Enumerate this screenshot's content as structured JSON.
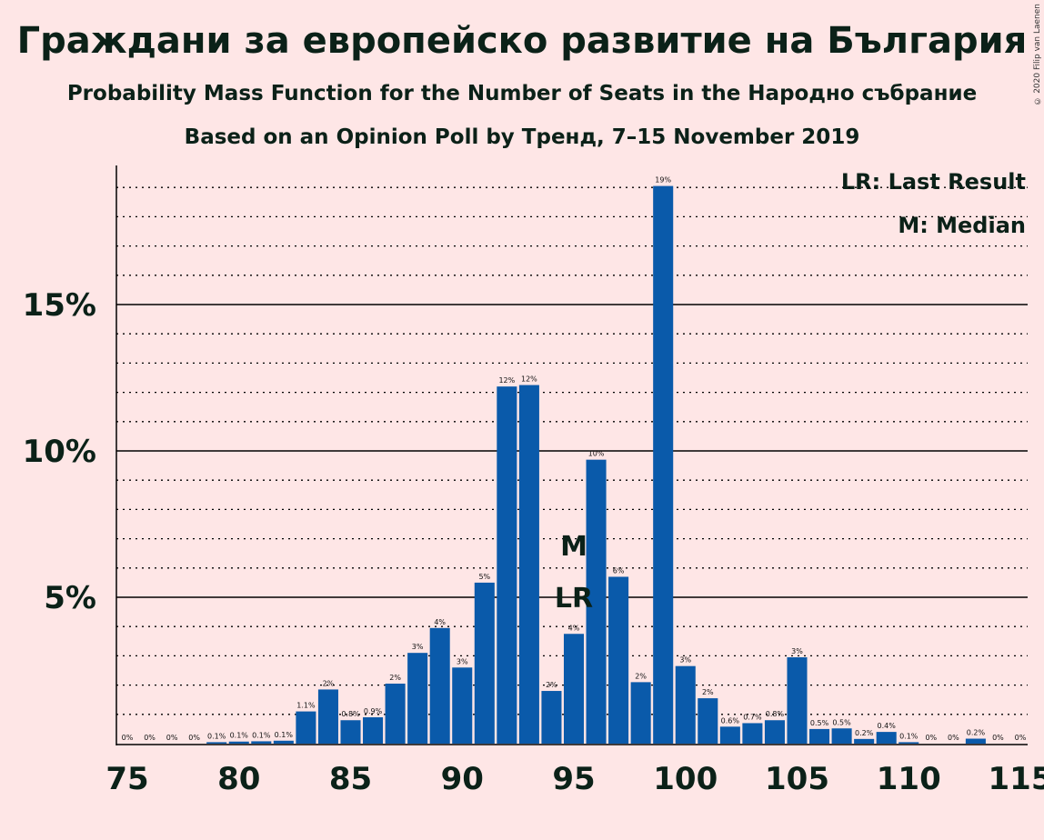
{
  "title": "Граждани за европейско развитие на България",
  "subtitle": "Probability Mass Function for the Number of Seats in the Народно събрание",
  "subtitle2": "Based on an Opinion Poll by Тренд, 7–15 November 2019",
  "copyright": "© 2020 Filip van Laenen",
  "legend": {
    "lr": "LR: Last Result",
    "m": "M: Median"
  },
  "colors": {
    "bar": "#0A5AAA",
    "background": "#FEE6E6",
    "text": "#0b2118"
  },
  "chart_data": {
    "type": "bar",
    "x": [
      75,
      76,
      77,
      78,
      79,
      80,
      81,
      82,
      83,
      84,
      85,
      86,
      87,
      88,
      89,
      90,
      91,
      92,
      93,
      94,
      95,
      96,
      97,
      98,
      99,
      100,
      101,
      102,
      103,
      104,
      105,
      106,
      107,
      108,
      109,
      110,
      111,
      112,
      113,
      114,
      115
    ],
    "values": [
      0,
      0,
      0,
      0,
      0.05,
      0.07,
      0.08,
      0.1,
      1.1,
      1.85,
      0.8,
      0.9,
      2.05,
      3.1,
      3.95,
      2.6,
      5.5,
      12.2,
      12.25,
      1.8,
      3.75,
      9.7,
      5.7,
      2.1,
      19.05,
      2.65,
      1.55,
      0.58,
      0.7,
      0.8,
      2.95,
      0.5,
      0.52,
      0.16,
      0.4,
      0.05,
      0,
      0,
      0.17,
      0,
      0
    ],
    "labels": [
      "0%",
      "0%",
      "0%",
      "0%",
      "0.1%",
      "0.1%",
      "0.1%",
      "0.1%",
      "1.1%",
      "2%",
      "0.8%",
      "0.9%",
      "2%",
      "3%",
      "4%",
      "3%",
      "5%",
      "12%",
      "12%",
      "2%",
      "4%",
      "10%",
      "6%",
      "2%",
      "19%",
      "3%",
      "2%",
      "0.6%",
      "0.7%",
      "0.8%",
      "3%",
      "0.5%",
      "0.5%",
      "0.2%",
      "0.4%",
      "0.1%",
      "0%",
      "0%",
      "0.2%",
      "0%",
      "0%"
    ],
    "xticks": [
      75,
      80,
      85,
      90,
      95,
      100,
      105,
      110,
      115
    ],
    "yticks": [
      5,
      10,
      15
    ],
    "ytick_labels": [
      "5%",
      "10%",
      "15%"
    ],
    "ylim": [
      0,
      21
    ],
    "xlim": [
      74.5,
      115.5
    ],
    "grid": "dotted minor every 1%, solid major every 5%",
    "median_seat": 95,
    "median_label": "M",
    "last_result_seat": 95,
    "last_result_label": "LR",
    "legend_position": "top-right"
  }
}
